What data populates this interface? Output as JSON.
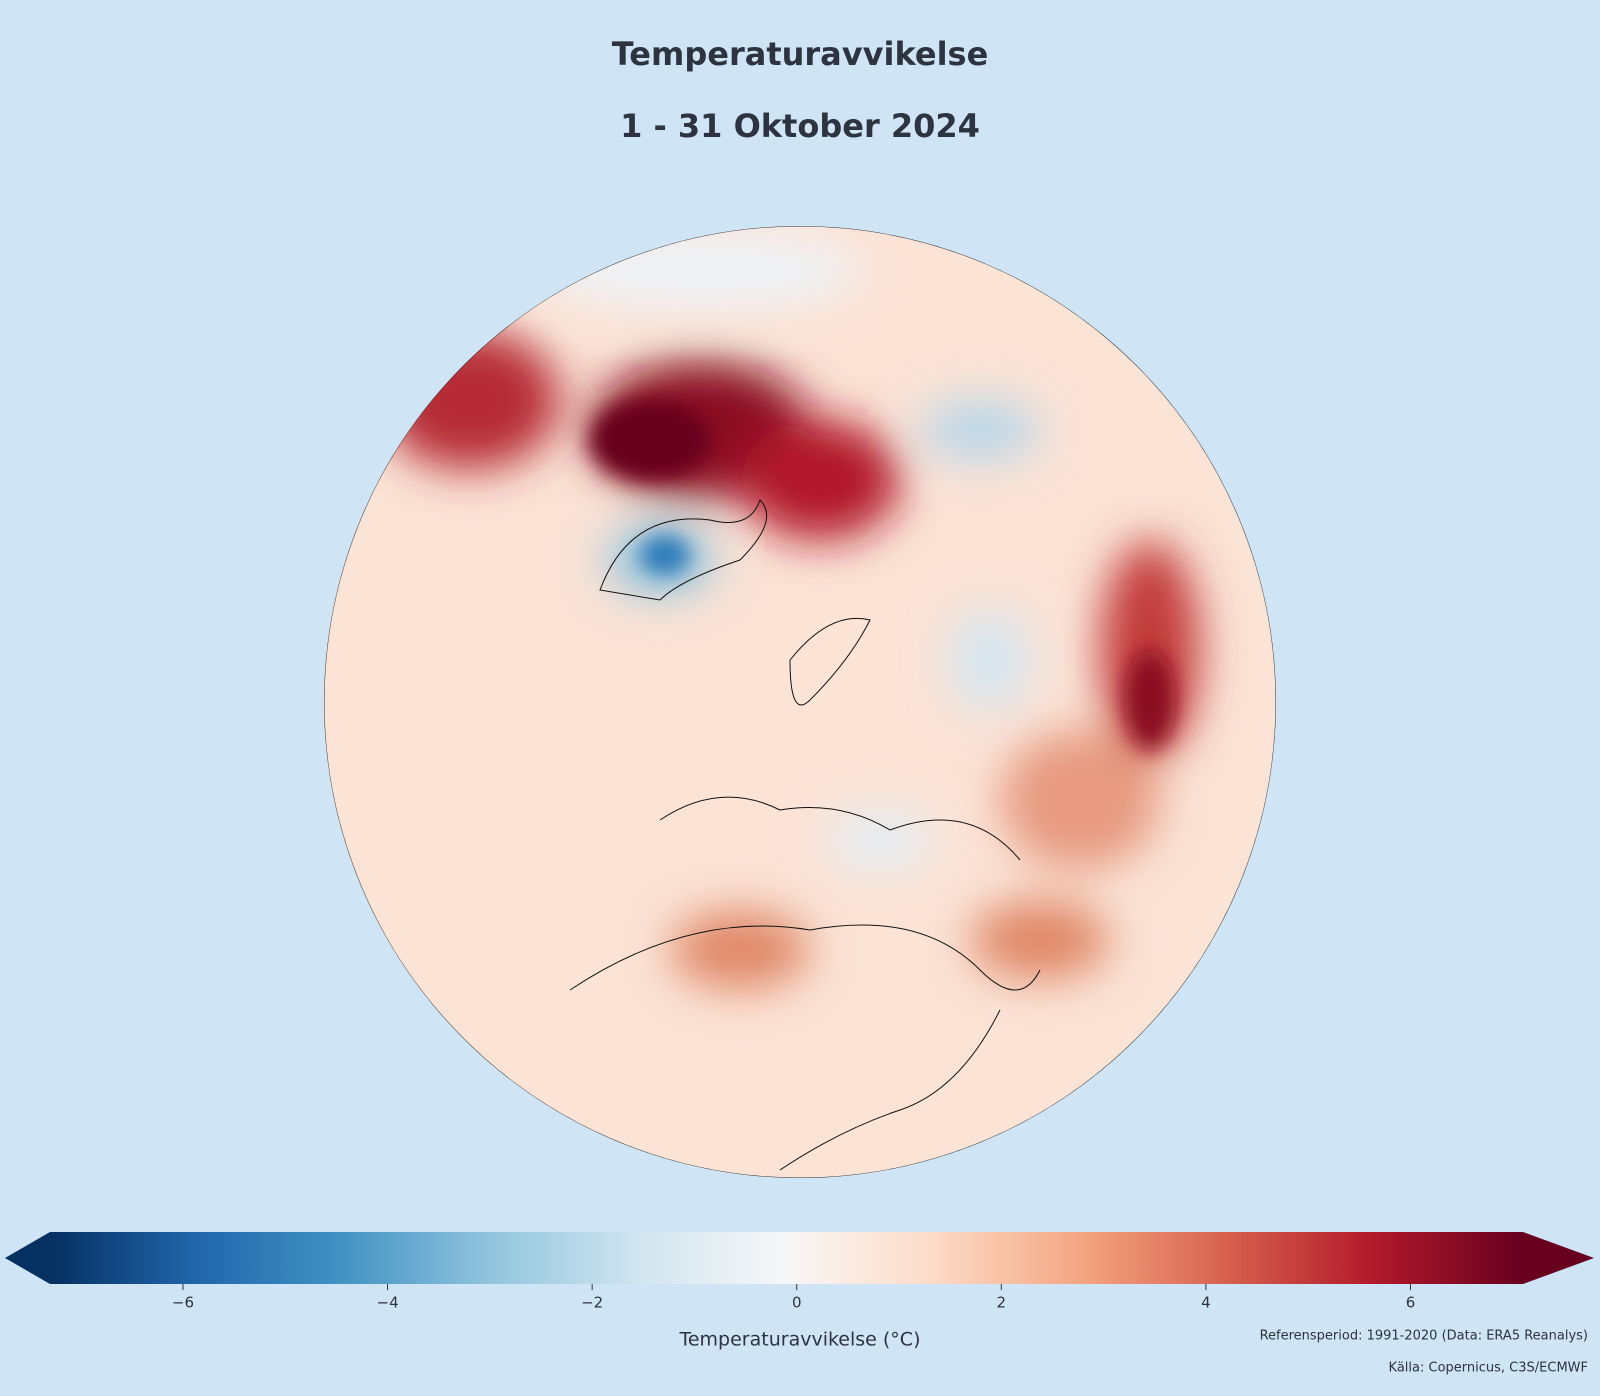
{
  "chart_data": {
    "type": "map",
    "title": "Temperaturavvikelse",
    "subtitle": "1 - 31 Oktober 2024",
    "colorbar": {
      "label": "Temperaturavvikelse (°C)",
      "colormap": "RdBu_r",
      "extend": "both",
      "lim": [
        -7.3,
        7.1
      ],
      "ticks": [
        {
          "value": -6,
          "label": "−6"
        },
        {
          "value": -4,
          "label": "−4"
        },
        {
          "value": -2,
          "label": "−2"
        },
        0,
        2,
        4,
        6
      ]
    },
    "annotations": [
      "Referensperiod: 1991-2020 (Data: ERA5 Reanalys)",
      "Källa: Copernicus, C3S/ECMWF"
    ]
  }
}
